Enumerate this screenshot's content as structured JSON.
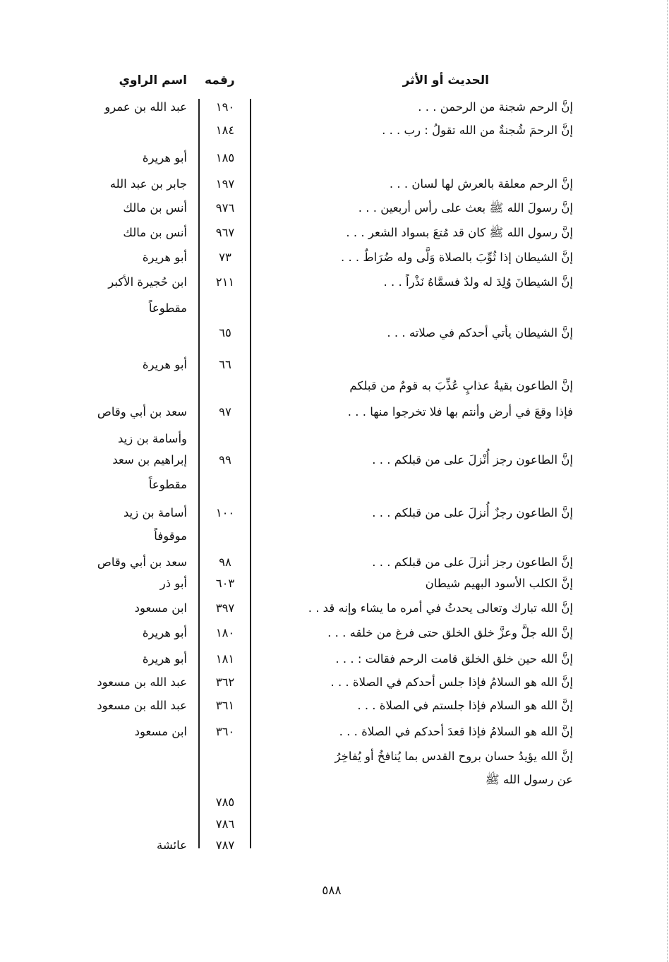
{
  "headers": {
    "hadith": "الحديث أو الأثر",
    "number": "رقمه",
    "narrator": "اسم الراوي"
  },
  "rows": [
    {
      "text": "إنَّ الرحم شجنة من الرحمن . . .",
      "num": "١٩٠",
      "narrator": "عبد الله بن عمرو"
    },
    {
      "text": "إنَّ الرحمَ شُجنةٌ من الله تقولُ : رب . . .",
      "num": "١٨٤",
      "narrator": ""
    },
    {
      "text": "",
      "num": "١٨٥",
      "narrator": "أبو هريرة"
    },
    {
      "text": "إنَّ الرحم معلقة بالعرش لها لسان . . .",
      "num": "١٩٧",
      "narrator": "جابر بن عبد الله"
    },
    {
      "text": "إنَّ رسولَ الله ﷺ بعث على رأس أربعين . . .",
      "num": "٩٧٦",
      "narrator": "أنس بن مالك"
    },
    {
      "text": "إنَّ رسول الله ﷺ كان قد مُتعَ بسواد الشعر . . .",
      "num": "٩٦٧",
      "narrator": "أنس بن مالك"
    },
    {
      "text": "إنَّ الشيطان إذا ثُوِّبَ بالصلاة وَلَّى وله ضُرَاطٌ . . .",
      "num": "٧٣",
      "narrator": "أبو هريرة"
    },
    {
      "text": "إنَّ الشيطانَ وُلِدَ له ولدٌ فسمَّاهُ نَذْراً . . .",
      "num": "٢١١",
      "narrator": "ابن حُجيرة الأكبر"
    },
    {
      "text": "",
      "num": "",
      "narrator": "مقطوعاً"
    },
    {
      "text": "إنَّ الشيطان يأتي أحدكم في صلاته . . .",
      "num": "٦٥",
      "narrator": ""
    },
    {
      "text": "",
      "num": "٦٦",
      "narrator": "أبو هريرة"
    },
    {
      "text": "إنَّ الطاعون بقيةُ عذابٍ عُذِّبَ به قومٌ من قبلكم",
      "num": "",
      "narrator": ""
    },
    {
      "text": "فإذا وقعَ في أرض وأنتم بها فلا تخرجوا منها . . .",
      "num": "٩٧",
      "narrator": "سعد بن أبي وقاص"
    },
    {
      "text": "",
      "num": "",
      "narrator": "وأسامة بن زيد"
    },
    {
      "text": "إنَّ الطاعون رجز أُنْزلَ على من قبلكم . . .",
      "num": "٩٩",
      "narrator": "إبراهيم بن سعد"
    },
    {
      "text": "",
      "num": "",
      "narrator": "مقطوعاً"
    },
    {
      "text": "إنَّ الطاعون رجزٌ أُنزلَ على من قبلكم . . .",
      "num": "١٠٠",
      "narrator": "أسامة بن زيد"
    },
    {
      "text": "",
      "num": "",
      "narrator": "موقوفاً"
    },
    {
      "text": "إنَّ الطاعون رجز أنزلَ على من قبلكم . . .",
      "num": "٩٨",
      "narrator": "سعد بن أبي وقاص"
    },
    {
      "text": "إنَّ الكلب الأسود البهيم شيطان",
      "num": "٦٠٣",
      "narrator": "أبو ذر"
    },
    {
      "text": "إنَّ الله تبارك وتعالى يحدثُ في أمره ما يشاء وإنه قد . .",
      "num": "٣٩٧",
      "narrator": "ابن مسعود"
    },
    {
      "text": "إنَّ الله جلَّ وعزَّ خلق الخلق حتى فرغ من خلقه . . .",
      "num": "١٨٠",
      "narrator": "أبو هريرة"
    },
    {
      "text": "إنَّ الله حين خلق الخلق قامت الرحم فقالت : . . .",
      "num": "١٨١",
      "narrator": "أبو هريرة"
    },
    {
      "text": "إنَّ الله هو السلامُ فإذا جلس أحدكم في الصلاة . . .",
      "num": "٣٦٢",
      "narrator": "عبد الله بن مسعود"
    },
    {
      "text": "إنَّ الله هو السلام فإذا جلستم في الصلاة . . .",
      "num": "٣٦١",
      "narrator": "عبد الله بن مسعود"
    },
    {
      "text": "إنَّ الله هو السلامُ فإذا قعدَ أحدكم في الصلاة . . .",
      "num": "٣٦٠",
      "narrator": "ابن مسعود"
    },
    {
      "text": "إنَّ الله يؤيدُ حسان بروح القدس بما يُنافخُ أو يُفاخِرُ",
      "num": "",
      "narrator": ""
    },
    {
      "text": "عن رسول الله ﷺ",
      "num": "",
      "narrator": ""
    },
    {
      "text": "",
      "num": "٧٨٥",
      "narrator": ""
    },
    {
      "text": "",
      "num": "٧٨٦",
      "narrator": ""
    },
    {
      "text": "",
      "num": "٧٨٧",
      "narrator": "عائشة"
    }
  ],
  "page_number": "٥٨٨"
}
